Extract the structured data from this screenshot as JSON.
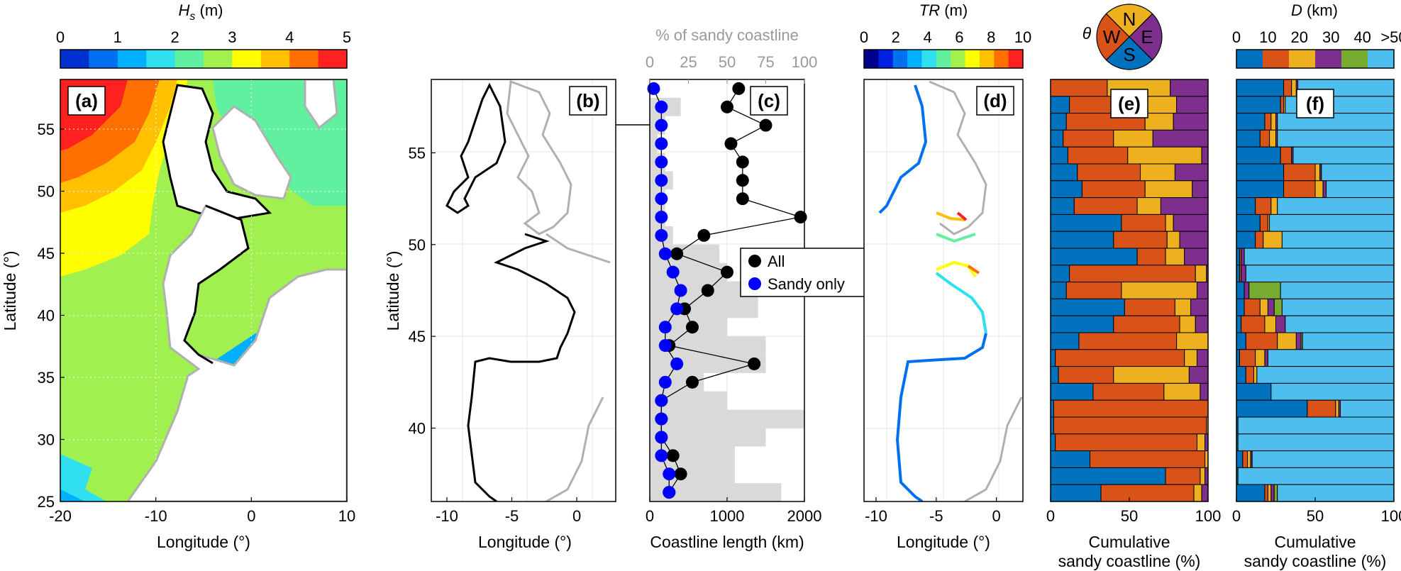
{
  "colors": {
    "west": "#d95319",
    "north": "#edb120",
    "east": "#7e2f8e",
    "south": "#0072bd",
    "d_0_10": "#0072bd",
    "d_10_20": "#d95319",
    "d_20_30": "#edb120",
    "d_30_40": "#7e2f8e",
    "d_40_50": "#77ac30",
    "d_50p": "#4dbeee",
    "all": "#000000",
    "sandy": "#0000ff",
    "hist": "#d9d9d9",
    "land": "#ffffff",
    "coast_grey": "#b0b0b0"
  },
  "figure": {
    "hs_colorbar": {
      "label_main": "H",
      "label_sub": "s",
      "label_unit": " (m)",
      "ticks": [
        "0",
        "1",
        "2",
        "3",
        "4",
        "5"
      ],
      "colors": [
        "#0030d0",
        "#0070f0",
        "#00b0ff",
        "#30e0f0",
        "#60f0a0",
        "#a0f050",
        "#ffff00",
        "#ffc000",
        "#ff7000",
        "#ff2020"
      ]
    },
    "tr_colorbar": {
      "label_main": "TR",
      "label_unit": " (m)",
      "ticks": [
        "0",
        "2",
        "4",
        "6",
        "8",
        "10"
      ],
      "colors": [
        "#000090",
        "#0020e0",
        "#0070f0",
        "#00b0ff",
        "#30e0f0",
        "#60f0a0",
        "#a0f050",
        "#ffff00",
        "#ffc000",
        "#ff7000",
        "#ff2020"
      ]
    },
    "theta": {
      "symbol": "θ",
      "N": "N",
      "E": "E",
      "S": "S",
      "W": "W"
    },
    "d_colorbar": {
      "label_main": "D",
      "label_unit": " (km)",
      "ticks": [
        "0",
        "10",
        "20",
        "30",
        "40",
        ">50"
      ]
    },
    "panel_a": {
      "letter": "(a)",
      "xlabel": "Longitude (°)",
      "ylabel": "Latitude (°)",
      "xticks": [
        "-20",
        "-10",
        "0",
        "10"
      ],
      "yticks": [
        "25",
        "30",
        "35",
        "40",
        "45",
        "50",
        "55"
      ]
    },
    "panel_b": {
      "letter": "(b)",
      "xlabel": "Longitude (°)",
      "ylabel": "Latitude (°)",
      "xticks": [
        "-10",
        "-5",
        "0"
      ],
      "yticks": [
        "40",
        "45",
        "50",
        "55"
      ]
    },
    "panel_c": {
      "letter": "(c)",
      "xlabel": "Coastline length (km)",
      "top_label": "% of sandy coastline",
      "xticks": [
        "0",
        "1000",
        "2000"
      ],
      "top_ticks": [
        "0",
        "25",
        "50",
        "75",
        "100"
      ],
      "legend_all": "All",
      "legend_sandy": "Sandy only"
    },
    "panel_d": {
      "letter": "(d)",
      "xlabel": "Longitude (°)",
      "xticks": [
        "-10",
        "-5",
        "0"
      ]
    },
    "panel_e": {
      "letter": "(e)",
      "xlabel_1": "Cumulative",
      "xlabel_2": "sandy coastline (%)",
      "xticks": [
        "0",
        "50",
        "100"
      ]
    },
    "panel_f": {
      "letter": "(f)",
      "xlabel_1": "Cumulative",
      "xlabel_2": "sandy coastline (%)",
      "xticks": [
        "0",
        "50",
        "100"
      ]
    }
  },
  "chart_data": [
    {
      "type": "scatter",
      "panel": "c",
      "ylim": [
        36,
        59
      ],
      "xlim": [
        0,
        2000
      ],
      "lat": [
        58.5,
        57.5,
        56.5,
        55.5,
        54.5,
        53.5,
        52.5,
        51.5,
        50.5,
        49.5,
        48.5,
        47.5,
        46.5,
        45.5,
        44.5,
        43.5,
        42.5,
        41.5,
        40.5,
        39.5,
        38.5,
        37.5,
        36.5
      ],
      "series": [
        {
          "name": "All",
          "values": [
            1150,
            1000,
            1500,
            1050,
            1200,
            1200,
            1200,
            1950,
            700,
            350,
            1000,
            750,
            450,
            550,
            250,
            1350,
            550,
            150,
            150,
            150,
            300,
            400,
            250
          ]
        },
        {
          "name": "Sandy only",
          "values": [
            50,
            150,
            150,
            150,
            150,
            150,
            150,
            150,
            150,
            200,
            300,
            400,
            350,
            200,
            200,
            350,
            200,
            150,
            150,
            150,
            150,
            250,
            250
          ]
        }
      ],
      "hist_pct_sandy": [
        0,
        20,
        10,
        5,
        10,
        15,
        10,
        10,
        15,
        45,
        50,
        70,
        70,
        50,
        75,
        75,
        35,
        50,
        100,
        75,
        55,
        55,
        85
      ]
    },
    {
      "type": "bar",
      "panel": "e",
      "orientation": "horizontal stacked",
      "order": [
        "S",
        "W",
        "N",
        "E"
      ],
      "rows": [
        [
          0,
          36,
          40,
          24
        ],
        [
          12,
          43,
          25,
          20
        ],
        [
          10,
          50,
          18,
          22
        ],
        [
          8,
          32,
          25,
          35
        ],
        [
          11,
          38,
          47,
          4
        ],
        [
          17,
          40,
          22,
          21
        ],
        [
          20,
          40,
          30,
          10
        ],
        [
          15,
          40,
          15,
          30
        ],
        [
          45,
          28,
          5,
          22
        ],
        [
          40,
          34,
          8,
          18
        ],
        [
          55,
          18,
          12,
          15
        ],
        [
          12,
          80,
          7,
          1
        ],
        [
          10,
          35,
          48,
          7
        ],
        [
          47,
          32,
          10,
          11
        ],
        [
          40,
          42,
          10,
          8
        ],
        [
          18,
          62,
          20,
          0
        ],
        [
          3,
          82,
          8,
          7
        ],
        [
          5,
          35,
          48,
          12
        ],
        [
          27,
          45,
          23,
          5
        ],
        [
          2,
          98,
          0,
          0
        ],
        [
          2,
          97,
          1,
          0
        ],
        [
          3,
          90,
          5,
          2
        ],
        [
          25,
          73,
          2,
          0
        ],
        [
          73,
          22,
          3,
          2
        ],
        [
          32,
          59,
          5,
          4
        ]
      ]
    },
    {
      "type": "bar",
      "panel": "f",
      "orientation": "horizontal stacked",
      "order": [
        "0-10",
        "10-20",
        "20-30",
        "30-40",
        "40-50",
        ">50"
      ],
      "rows": [
        [
          30,
          5,
          3,
          1,
          0,
          61
        ],
        [
          28,
          2,
          1,
          0,
          0,
          69
        ],
        [
          18,
          4,
          3,
          1,
          0,
          74
        ],
        [
          15,
          6,
          4,
          1,
          0,
          74
        ],
        [
          28,
          7,
          0,
          1,
          0,
          64
        ],
        [
          30,
          20,
          3,
          1,
          0,
          46
        ],
        [
          30,
          20,
          5,
          2,
          0,
          43
        ],
        [
          12,
          10,
          4,
          0,
          0,
          74
        ],
        [
          15,
          5,
          1,
          0,
          0,
          79
        ],
        [
          12,
          5,
          12,
          0,
          0,
          71
        ],
        [
          2,
          1,
          0,
          2,
          0,
          95
        ],
        [
          2,
          1,
          0,
          3,
          0,
          94
        ],
        [
          5,
          0,
          0,
          3,
          20,
          72
        ],
        [
          5,
          10,
          5,
          4,
          5,
          71
        ],
        [
          3,
          15,
          7,
          6,
          0,
          69
        ],
        [
          6,
          20,
          12,
          3,
          1,
          58
        ],
        [
          2,
          10,
          6,
          2,
          0,
          80
        ],
        [
          6,
          5,
          2,
          0,
          0,
          87
        ],
        [
          22,
          0,
          0,
          0,
          0,
          78
        ],
        [
          45,
          18,
          2,
          1,
          0,
          34
        ],
        [
          1,
          0,
          0,
          0,
          0,
          99
        ],
        [
          1,
          0,
          0,
          0,
          0,
          99
        ],
        [
          4,
          3,
          2,
          1,
          0,
          90
        ],
        [
          1,
          0,
          0,
          0,
          0,
          99
        ],
        [
          18,
          2,
          2,
          2,
          2,
          74
        ]
      ]
    }
  ]
}
